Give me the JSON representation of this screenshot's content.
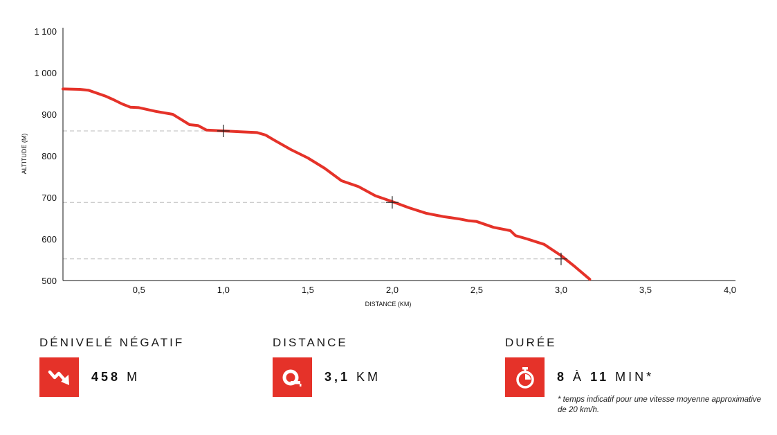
{
  "chart_data": {
    "type": "line",
    "xlabel": "DISTANCE (KM)",
    "ylabel": "ALTITUDE (M)",
    "xlim": [
      0.05,
      4.0
    ],
    "ylim": [
      500,
      1100
    ],
    "x_ticks": [
      "0,5",
      "1,0",
      "1,5",
      "2,0",
      "2,5",
      "3,0",
      "3,5",
      "4,0"
    ],
    "x_tick_values": [
      0.5,
      1.0,
      1.5,
      2.0,
      2.5,
      3.0,
      3.5,
      4.0
    ],
    "y_ticks": [
      "500",
      "600",
      "700",
      "800",
      "900",
      "1 000",
      "1 100"
    ],
    "y_tick_values": [
      500,
      600,
      700,
      800,
      900,
      1000,
      1100
    ],
    "grid": false,
    "line_color": "#e53229",
    "series": [
      {
        "x": [
          0.05,
          0.15,
          0.2,
          0.3,
          0.35,
          0.4,
          0.45,
          0.5,
          0.6,
          0.7,
          0.8,
          0.85,
          0.9,
          1.0,
          1.1,
          1.2,
          1.25,
          1.3,
          1.4,
          1.5,
          1.6,
          1.7,
          1.8,
          1.9,
          2.0,
          2.1,
          2.2,
          2.3,
          2.35,
          2.4,
          2.45,
          2.5,
          2.6,
          2.7,
          2.73,
          2.8,
          2.9,
          3.0,
          3.08,
          3.17
        ],
        "y": [
          961,
          960,
          958,
          944,
          935,
          925,
          917,
          916,
          907,
          900,
          875,
          873,
          862,
          860,
          858,
          856,
          850,
          838,
          815,
          795,
          770,
          740,
          726,
          704,
          690,
          675,
          662,
          654,
          651,
          648,
          644,
          642,
          628,
          620,
          608,
          600,
          587,
          560,
          534,
          503
        ]
      }
    ],
    "markers": [
      {
        "x": 1.0,
        "y": 860
      },
      {
        "x": 2.0,
        "y": 688
      },
      {
        "x": 3.0,
        "y": 552
      }
    ]
  },
  "stats": [
    {
      "title": "DÉNIVELÉ NÉGATIF",
      "value": "458",
      "unit": "M",
      "icon": "descent-arrow-icon"
    },
    {
      "title": "DISTANCE",
      "value": "3,1",
      "unit": "KM",
      "icon": "tape-measure-icon"
    },
    {
      "title": "DURÉE",
      "value_a": "8",
      "connector": "À",
      "value_b": "11",
      "unit": "MIN*",
      "icon": "stopwatch-icon"
    }
  ],
  "footnote": "* temps indicatif pour une vitesse moyenne approximative de 20 km/h.",
  "colors": {
    "accent": "#e53229"
  }
}
